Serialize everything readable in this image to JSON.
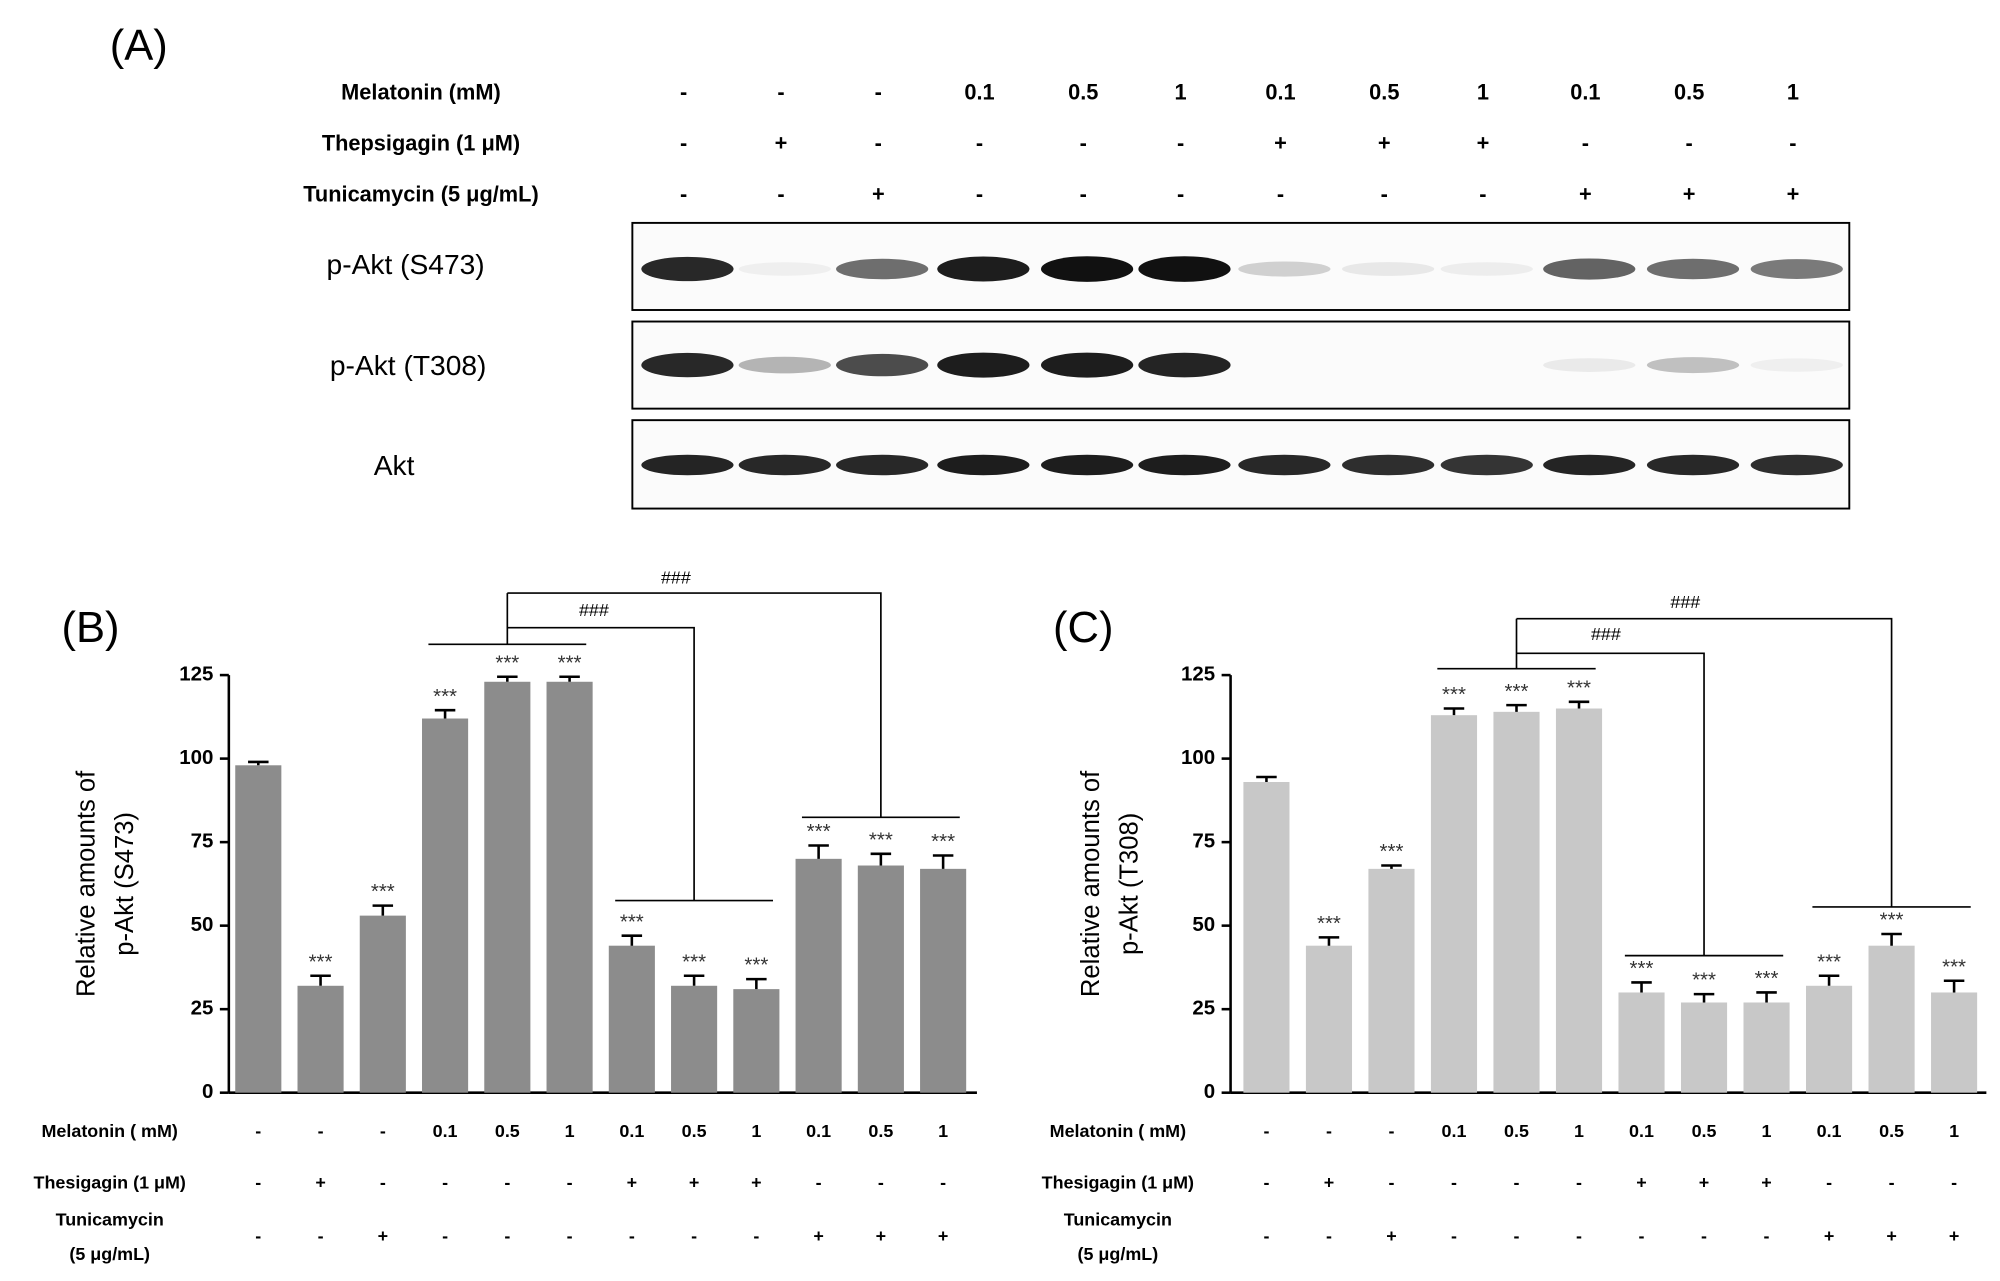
{
  "panel_a": {
    "label": "(A)",
    "rows": [
      {
        "label": "Melatonin (mM)",
        "values": [
          "-",
          "-",
          "-",
          "0.1",
          "0.5",
          "1",
          "0.1",
          "0.5",
          "1",
          "0.1",
          "0.5",
          "1"
        ]
      },
      {
        "label": "Thepsigagin (1 μM)",
        "values": [
          "-",
          "+",
          "-",
          "-",
          "-",
          "-",
          "+",
          "+",
          "+",
          "-",
          "-",
          "-"
        ]
      },
      {
        "label": "Tunicamycin (5 μg/mL)",
        "values": [
          "-",
          "-",
          "+",
          "-",
          "-",
          "-",
          "-",
          "-",
          "-",
          "+",
          "+",
          "+"
        ]
      }
    ],
    "blots": [
      "p-Akt (S473)",
      "p-Akt (T308)",
      "Akt"
    ]
  },
  "chart_data": [
    {
      "type": "bar",
      "label": "(B)",
      "ylabel": [
        "Relative amounts of",
        "p-Akt (S473)"
      ],
      "color": "#8c8c8c",
      "values": [
        98,
        32,
        53,
        112,
        123,
        123,
        44,
        32,
        31,
        70,
        68,
        67
      ],
      "errors": [
        1,
        3,
        3,
        2.5,
        1.5,
        1.5,
        3,
        3,
        3,
        4,
        3.5,
        4
      ],
      "significance": [
        null,
        "***",
        "***",
        "***",
        "***",
        "***",
        "***",
        "***",
        "***",
        "***",
        "***",
        "***"
      ],
      "annotations": [
        "###",
        "###"
      ],
      "ylim": [
        0,
        125
      ],
      "yticks": [
        0,
        25,
        50,
        75,
        100,
        125
      ],
      "treatments": [
        {
          "label": [
            "Melatonin ( mM)"
          ],
          "values": [
            "-",
            "-",
            "-",
            "0.1",
            "0.5",
            "1",
            "0.1",
            "0.5",
            "1",
            "0.1",
            "0.5",
            "1"
          ]
        },
        {
          "label": [
            "Thesigagin (1 μM)"
          ],
          "values": [
            "-",
            "+",
            "-",
            "-",
            "-",
            "-",
            "+",
            "+",
            "+",
            "-",
            "-",
            "-"
          ]
        },
        {
          "label": [
            "Tunicamycin",
            "(5 μg/mL)"
          ],
          "values": [
            "-",
            "-",
            "+",
            "-",
            "-",
            "-",
            "-",
            "-",
            "-",
            "+",
            "+",
            "+"
          ]
        }
      ]
    },
    {
      "type": "bar",
      "label": "(C)",
      "ylabel": [
        "Relative amounts of",
        "p-Akt (T308)"
      ],
      "color": "#c8c8c8",
      "values": [
        93,
        44,
        67,
        113,
        114,
        115,
        30,
        27,
        27,
        32,
        44,
        30
      ],
      "errors": [
        1.5,
        2.5,
        1,
        2,
        2,
        2,
        3,
        2.5,
        3,
        3,
        3.5,
        3.5
      ],
      "significance": [
        null,
        "***",
        "***",
        "***",
        "***",
        "***",
        "***",
        "***",
        "***",
        "***",
        "***",
        "***"
      ],
      "annotations": [
        "###",
        "###"
      ],
      "ylim": [
        0,
        125
      ],
      "yticks": [
        0,
        25,
        50,
        75,
        100,
        125
      ],
      "treatments": [
        {
          "label": [
            "Melatonin ( mM)"
          ],
          "values": [
            "-",
            "-",
            "-",
            "0.1",
            "0.5",
            "1",
            "0.1",
            "0.5",
            "1",
            "0.1",
            "0.5",
            "1"
          ]
        },
        {
          "label": [
            "Thesigagin (1 μM)"
          ],
          "values": [
            "-",
            "+",
            "-",
            "-",
            "-",
            "-",
            "+",
            "+",
            "+",
            "-",
            "-",
            "-"
          ]
        },
        {
          "label": [
            "Tunicamycin",
            "(5 μg/mL)"
          ],
          "values": [
            "-",
            "-",
            "+",
            "-",
            "-",
            "-",
            "-",
            "-",
            "-",
            "+",
            "+",
            "+"
          ]
        }
      ]
    }
  ]
}
